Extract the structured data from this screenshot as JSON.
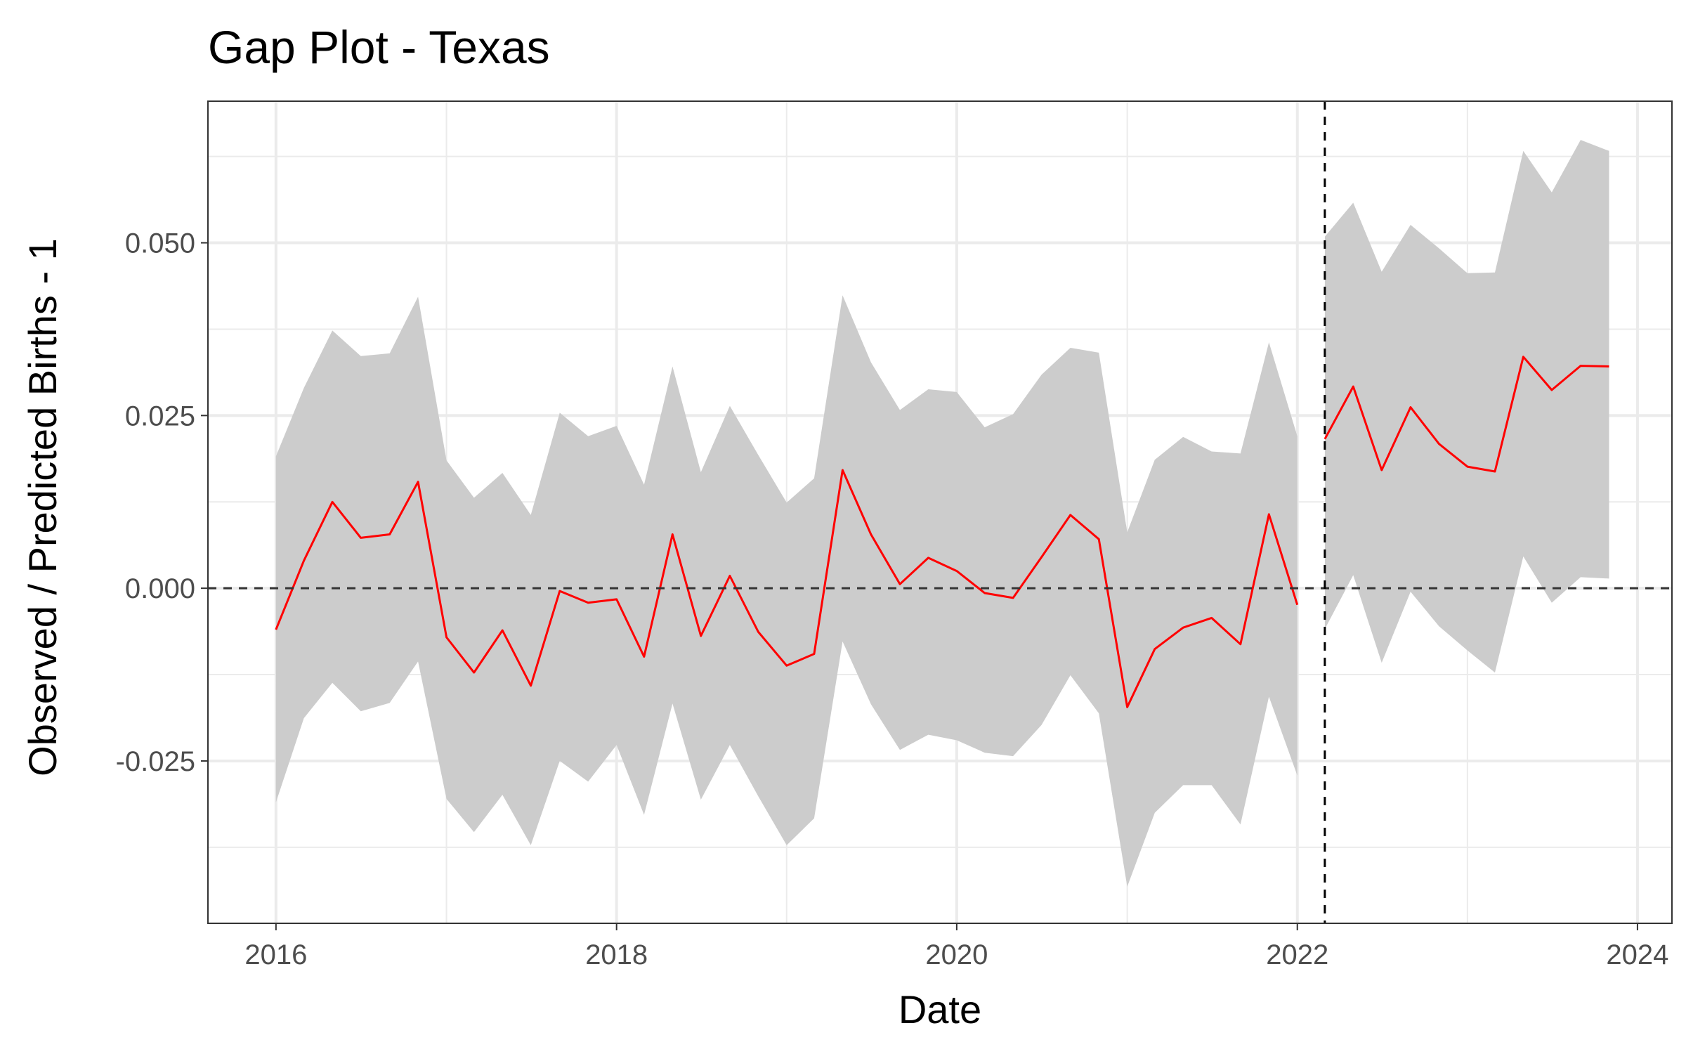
{
  "chart_data": {
    "type": "line",
    "title": "Gap Plot - Texas",
    "xlabel": "Date",
    "ylabel": "Observed / Predicted Births - 1",
    "x_ticks": [
      "2016",
      "2018",
      "2020",
      "2022",
      "2024"
    ],
    "y_ticks": [
      "0.050",
      "0.025",
      "0.000",
      "-0.025"
    ],
    "xlim": [
      "2015-08-08",
      "2024-03-15"
    ],
    "ylim": [
      -0.0485,
      0.0705
    ],
    "grid": true,
    "reference_lines": [
      {
        "orientation": "horizontal",
        "value": 0.0,
        "style": "dashed"
      },
      {
        "orientation": "vertical",
        "value": "2022-03-01",
        "style": "dashed"
      }
    ],
    "colors": {
      "line": "#ff0000",
      "band": "#cccccc",
      "grid": "#ebebeb",
      "reference": "#333333"
    },
    "series": [
      {
        "dates": [
          "2016-01-01",
          "2016-03-01",
          "2016-05-01",
          "2016-07-01",
          "2016-09-01",
          "2016-11-01",
          "2017-01-01",
          "2017-03-01",
          "2017-05-01",
          "2017-07-01",
          "2017-09-01",
          "2017-11-01",
          "2018-01-01",
          "2018-03-01",
          "2018-05-01",
          "2018-07-01",
          "2018-09-01",
          "2018-11-01",
          "2019-01-01",
          "2019-03-01",
          "2019-05-01",
          "2019-07-01",
          "2019-09-01",
          "2019-11-01",
          "2020-01-01",
          "2020-03-01",
          "2020-05-01",
          "2020-07-01",
          "2020-09-01",
          "2020-11-01",
          "2021-01-01",
          "2021-03-01",
          "2021-05-01",
          "2021-07-01",
          "2021-09-01",
          "2021-11-01",
          "2022-01-01"
        ],
        "values": [
          -0.006,
          0.004,
          0.0125,
          0.0073,
          0.0078,
          0.0154,
          -0.0071,
          -0.0122,
          -0.0061,
          -0.0141,
          -0.0004,
          -0.0021,
          -0.0016,
          -0.0099,
          0.0078,
          -0.0069,
          0.0018,
          -0.0063,
          -0.0112,
          -0.0095,
          0.0171,
          0.0078,
          0.0006,
          0.0044,
          0.0025,
          -0.0007,
          -0.0014,
          0.0045,
          0.0106,
          0.0071,
          -0.0172,
          -0.0088,
          -0.0057,
          -0.0043,
          -0.0081,
          0.0107,
          -0.0024
        ],
        "lower": [
          -0.031,
          -0.0188,
          -0.0137,
          -0.0178,
          -0.0166,
          -0.0106,
          -0.0305,
          -0.0353,
          -0.0299,
          -0.0372,
          -0.025,
          -0.028,
          -0.0227,
          -0.0328,
          -0.0167,
          -0.0306,
          -0.0227,
          -0.0301,
          -0.0372,
          -0.0333,
          -0.0077,
          -0.0168,
          -0.0234,
          -0.0212,
          -0.022,
          -0.0238,
          -0.0243,
          -0.0198,
          -0.0126,
          -0.0181,
          -0.0432,
          -0.0325,
          -0.0285,
          -0.0285,
          -0.0342,
          -0.0157,
          -0.0271
        ],
        "upper": [
          0.0191,
          0.029,
          0.0373,
          0.0336,
          0.034,
          0.0422,
          0.0185,
          0.0131,
          0.0167,
          0.0106,
          0.0254,
          0.022,
          0.0235,
          0.015,
          0.0321,
          0.0168,
          0.0264,
          0.0193,
          0.0124,
          0.0159,
          0.0424,
          0.0327,
          0.0258,
          0.0288,
          0.0284,
          0.0233,
          0.0252,
          0.0309,
          0.0348,
          0.0341,
          0.0081,
          0.0186,
          0.0219,
          0.0198,
          0.0195,
          0.0356,
          0.022
        ]
      },
      {
        "dates": [
          "2022-03-01",
          "2022-05-01",
          "2022-07-01",
          "2022-09-01",
          "2022-11-01",
          "2023-01-01",
          "2023-03-01",
          "2023-05-01",
          "2023-07-01",
          "2023-09-01",
          "2023-11-01"
        ],
        "values": [
          0.0216,
          0.0292,
          0.0171,
          0.0262,
          0.0209,
          0.0176,
          0.0169,
          0.0335,
          0.0287,
          0.0322,
          0.0321
        ],
        "lower": [
          -0.0059,
          0.0019,
          -0.0108,
          -0.0005,
          -0.0055,
          -0.009,
          -0.0122,
          0.0046,
          -0.0021,
          0.0016,
          0.0014
        ],
        "upper": [
          0.0509,
          0.0558,
          0.0458,
          0.0526,
          0.0492,
          0.0456,
          0.0457,
          0.0633,
          0.0573,
          0.0649,
          0.0633
        ]
      }
    ]
  }
}
